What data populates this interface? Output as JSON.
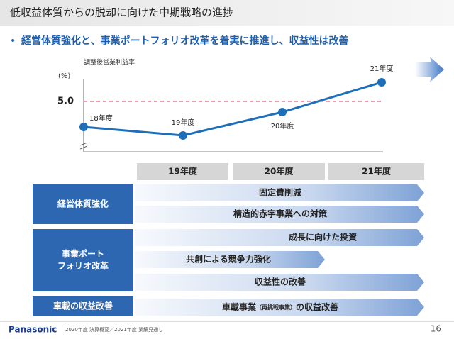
{
  "header": {
    "title": "低収益体質からの脱却に向けた中期戦略の進捗"
  },
  "bullet": "経営体質強化と、事業ポートフォリオ改革を着実に推進し、収益性は改善",
  "chart_data": {
    "type": "line",
    "y_label": "調整後営業利益率",
    "y_unit": "(%)",
    "categories": [
      "18年度",
      "19年度",
      "20年度",
      "21年度"
    ],
    "values": [
      3.8,
      3.4,
      4.5,
      5.9
    ],
    "color": "#1f6fb8",
    "ylim": [
      2.5,
      6.5
    ],
    "yticks": [
      {
        "value": 5,
        "label": "5.0"
      }
    ],
    "grid": true,
    "grid_color": "#e0607a"
  },
  "table": {
    "columns": [
      "19年度",
      "20年度",
      "21年度"
    ],
    "groups": [
      {
        "label": [
          "経営体質強化"
        ],
        "items": [
          "固定費削減",
          "構造的赤字事業への対策"
        ]
      },
      {
        "label": [
          "事業ポート",
          "フォリオ改革"
        ],
        "items": [
          "成長に向けた投資",
          "共創による競争力強化",
          "収益性の改善"
        ]
      },
      {
        "label": [
          "車載の収益改善"
        ],
        "items": [
          [
            "車載事業",
            "（再挑戦事業）",
            "の収益改善"
          ]
        ]
      }
    ]
  },
  "footer": {
    "logo": "Panasonic",
    "note": "2020年度 決算概要／2021年度 業績見通し",
    "page": "16"
  }
}
